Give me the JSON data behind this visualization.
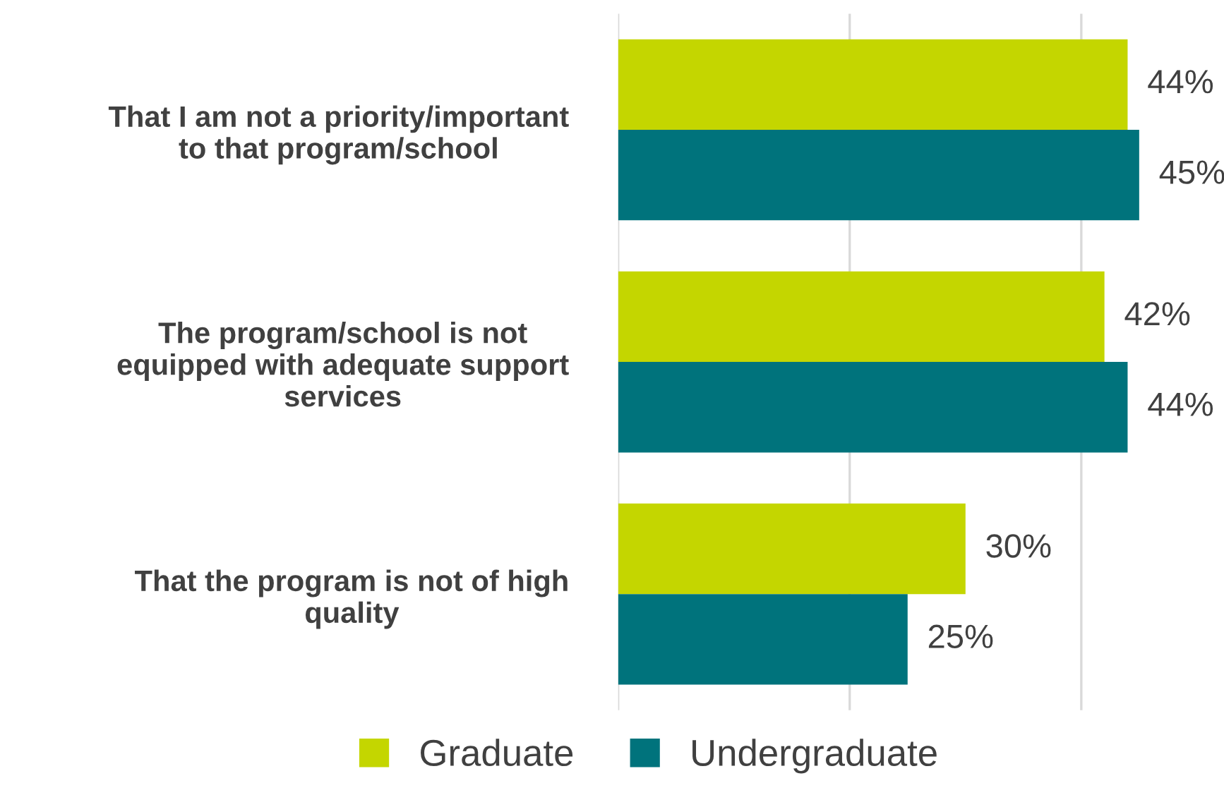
{
  "chart_data": {
    "type": "bar",
    "orientation": "horizontal",
    "categories": [
      "That I am not a priority/important\nto that program/school",
      "The program/school is not\nequipped with adequate support\nservices",
      "That the program is not of high\nquality"
    ],
    "series": [
      {
        "name": "Graduate",
        "color": "#c4d600",
        "values": [
          44,
          42,
          30
        ],
        "value_labels": [
          "44%",
          "42%",
          "30%"
        ]
      },
      {
        "name": "Undergraduate",
        "color": "#00737c",
        "values": [
          45,
          44,
          25
        ],
        "value_labels": [
          "45%",
          "44%",
          "25%"
        ]
      }
    ],
    "ref_lines": [
      {
        "axis": "x",
        "value": 0,
        "color": "#d9d9d9"
      },
      {
        "axis": "x",
        "value": 20,
        "color": "#d9d9d9"
      },
      {
        "axis": "x",
        "value": 40,
        "color": "#d9d9d9"
      }
    ],
    "legend": "bottom",
    "tick_labels": "y"
  }
}
